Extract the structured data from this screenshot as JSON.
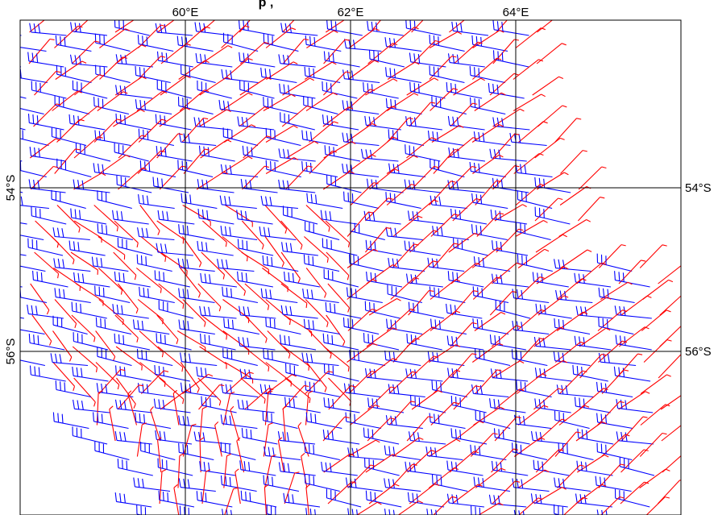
{
  "title": "p     ,",
  "map": {
    "lon_range_deg_e": [
      57.9,
      66.0
    ],
    "lat_range_deg_s": [
      52.0,
      58.0
    ],
    "longitude_ticks": [
      {
        "value": 60,
        "label": "60°E"
      },
      {
        "value": 62,
        "label": "62°E"
      },
      {
        "value": 64,
        "label": "64°E"
      }
    ],
    "latitude_ticks": [
      {
        "value": 54,
        "label_left": "54°S",
        "label_right": "54°S"
      },
      {
        "value": 56,
        "label_left": "56°S",
        "label_right": "56°S"
      }
    ],
    "graticule": true
  },
  "wind_barbs": {
    "series": [
      {
        "color": "#0000ff",
        "barb_style": "three full barbs (~30 kt)",
        "direction_from_deg": 260
      },
      {
        "color": "#ff0000",
        "barb_style": "single short barb (~5 kt)",
        "direction_from_deg": 235
      }
    ]
  }
}
